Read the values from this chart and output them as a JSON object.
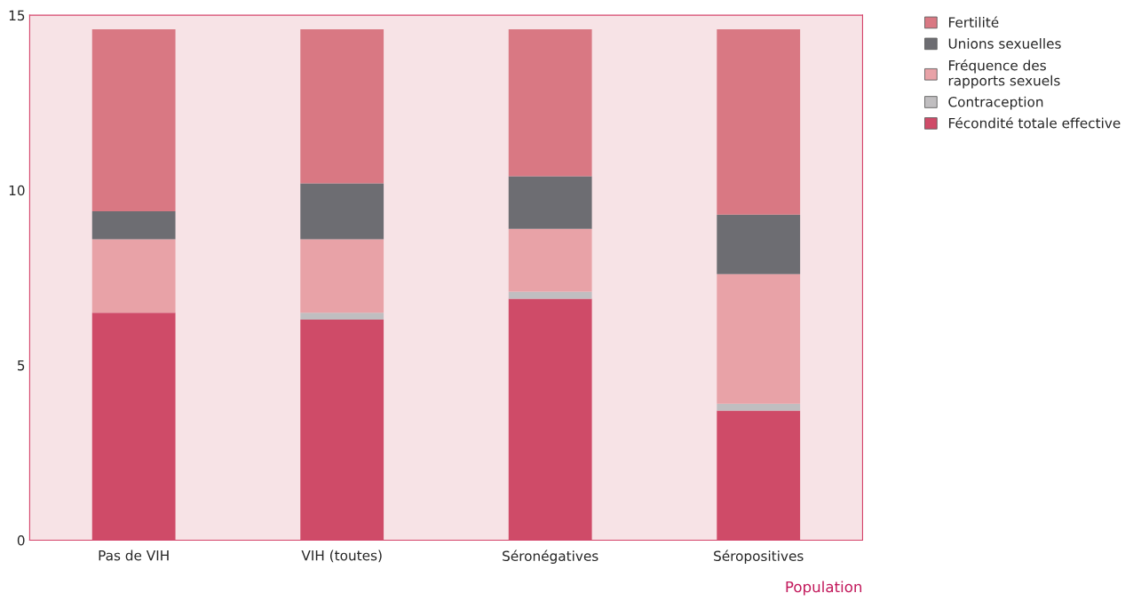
{
  "chart_data": {
    "type": "bar",
    "stacked": true,
    "xlabel": "Population",
    "categories": [
      "Pas de VIH",
      "VIH (toutes)",
      "Séronégatives",
      "Séropositives"
    ],
    "series": [
      {
        "name": "Fécondité totale effective",
        "color": "#cf4b68",
        "values": [
          6.5,
          6.3,
          6.9,
          3.7
        ]
      },
      {
        "name": "Contraception",
        "color": "#c0bec0",
        "values": [
          0,
          0.2,
          0.2,
          0.2
        ]
      },
      {
        "name": "Fréquence des\nrapports sexuels",
        "color": "#e8a2a7",
        "values": [
          2.1,
          2.1,
          1.8,
          3.7
        ]
      },
      {
        "name": "Unions sexuelles",
        "color": "#6d6d72",
        "values": [
          0.8,
          1.6,
          1.5,
          1.7
        ]
      },
      {
        "name": "Fertilité",
        "color": "#d97883",
        "values": [
          5.2,
          4.4,
          4.2,
          5.3
        ]
      }
    ],
    "ylim": [
      0,
      15
    ],
    "yticks": [
      0,
      5,
      10,
      15
    ],
    "grid": false,
    "legend": "top right"
  }
}
